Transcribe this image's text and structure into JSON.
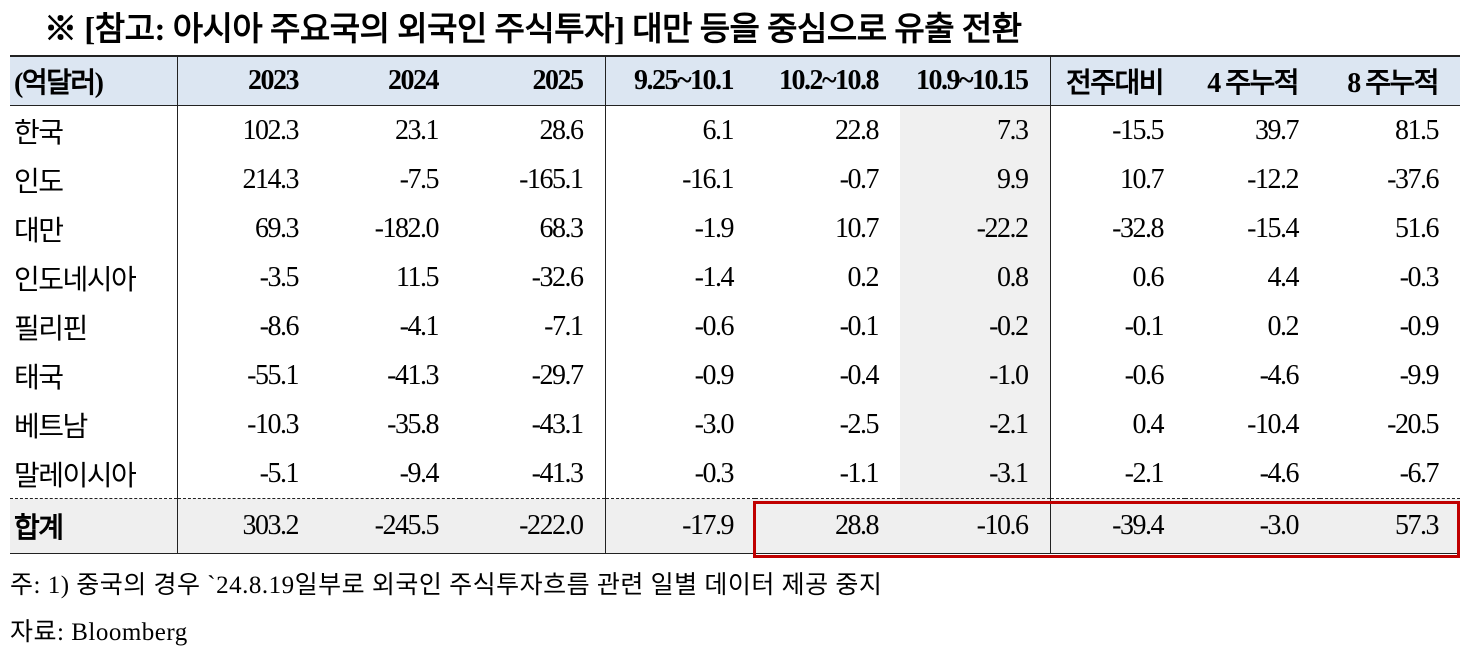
{
  "title": "※ [참고: 아시아 주요국의 외국인 주식투자] 대만 등을 중심으로 유출 전환",
  "table": {
    "columns": [
      "(억달러)",
      "2023",
      "2024",
      "2025",
      "9.25~10.1",
      "10.2~10.8",
      "10.9~10.15",
      "전주대비",
      "4 주누적",
      "8 주누적"
    ],
    "rows": [
      [
        "한국",
        "102.3",
        "23.1",
        "28.6",
        "6.1",
        "22.8",
        "7.3",
        "-15.5",
        "39.7",
        "81.5"
      ],
      [
        "인도",
        "214.3",
        "-7.5",
        "-165.1",
        "-16.1",
        "-0.7",
        "9.9",
        "10.7",
        "-12.2",
        "-37.6"
      ],
      [
        "대만",
        "69.3",
        "-182.0",
        "68.3",
        "-1.9",
        "10.7",
        "-22.2",
        "-32.8",
        "-15.4",
        "51.6"
      ],
      [
        "인도네시아",
        "-3.5",
        "11.5",
        "-32.6",
        "-1.4",
        "0.2",
        "0.8",
        "0.6",
        "4.4",
        "-0.3"
      ],
      [
        "필리핀",
        "-8.6",
        "-4.1",
        "-7.1",
        "-0.6",
        "-0.1",
        "-0.2",
        "-0.1",
        "0.2",
        "-0.9"
      ],
      [
        "태국",
        "-55.1",
        "-41.3",
        "-29.7",
        "-0.9",
        "-0.4",
        "-1.0",
        "-0.6",
        "-4.6",
        "-9.9"
      ],
      [
        "베트남",
        "-10.3",
        "-35.8",
        "-43.1",
        "-3.0",
        "-2.5",
        "-2.1",
        "0.4",
        "-10.4",
        "-20.5"
      ],
      [
        "말레이시아",
        "-5.1",
        "-9.4",
        "-41.3",
        "-0.3",
        "-1.1",
        "-3.1",
        "-2.1",
        "-4.6",
        "-6.7"
      ]
    ],
    "total": [
      "합계",
      "303.2",
      "-245.5",
      "-222.0",
      "-17.9",
      "28.8",
      "-10.6",
      "-39.4",
      "-3.0",
      "57.3"
    ]
  },
  "notes": [
    "주: 1) 중국의 경우 `24.8.19일부로 외국인 주식투자흐름 관련 일별 데이터 제공 중지",
    "자료: Bloomberg"
  ]
}
